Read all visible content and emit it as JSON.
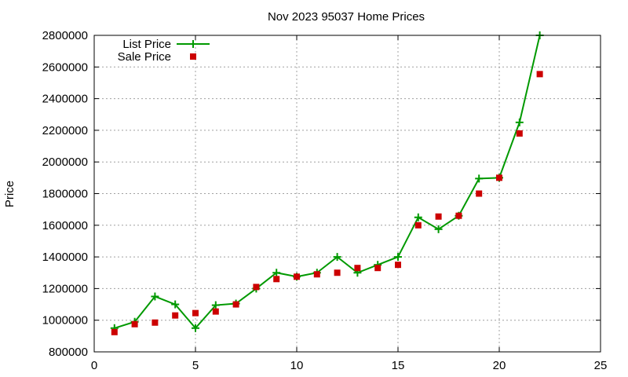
{
  "chart_data": {
    "type": "line",
    "title": "Nov 2023 95037 Home Prices",
    "xlabel": "",
    "ylabel": "Price",
    "xlim": [
      0,
      25
    ],
    "ylim": [
      800000,
      2800000
    ],
    "x_ticks": [
      "0",
      "5",
      "10",
      "15",
      "20",
      "25"
    ],
    "y_ticks": [
      "800000",
      "1000000",
      "1200000",
      "1400000",
      "1600000",
      "1800000",
      "2000000",
      "2200000",
      "2400000",
      "2600000",
      "2800000"
    ],
    "grid": true,
    "legend_position": "top-left",
    "series": [
      {
        "name": "List Price",
        "style": "line-plus",
        "color": "#009900",
        "x": [
          1,
          2,
          3,
          4,
          5,
          6,
          7,
          8,
          9,
          10,
          11,
          12,
          13,
          14,
          15,
          16,
          17,
          18,
          19,
          20,
          21,
          22
        ],
        "y": [
          950000,
          990000,
          1150000,
          1100000,
          950000,
          1095000,
          1105000,
          1200000,
          1300000,
          1275000,
          1300000,
          1400000,
          1300000,
          1350000,
          1400000,
          1650000,
          1575000,
          1660000,
          1895000,
          1900000,
          2250000,
          2800000
        ]
      },
      {
        "name": "Sale Price",
        "style": "square",
        "color": "#cc0000",
        "x": [
          1,
          2,
          3,
          4,
          5,
          6,
          7,
          8,
          9,
          10,
          11,
          12,
          13,
          14,
          15,
          16,
          17,
          18,
          19,
          20,
          21,
          22
        ],
        "y": [
          925000,
          975000,
          985000,
          1030000,
          1045000,
          1055000,
          1100000,
          1210000,
          1260000,
          1275000,
          1290000,
          1300000,
          1330000,
          1330000,
          1350000,
          1600000,
          1655000,
          1660000,
          1800000,
          1900000,
          2180000,
          2555000
        ]
      }
    ]
  }
}
